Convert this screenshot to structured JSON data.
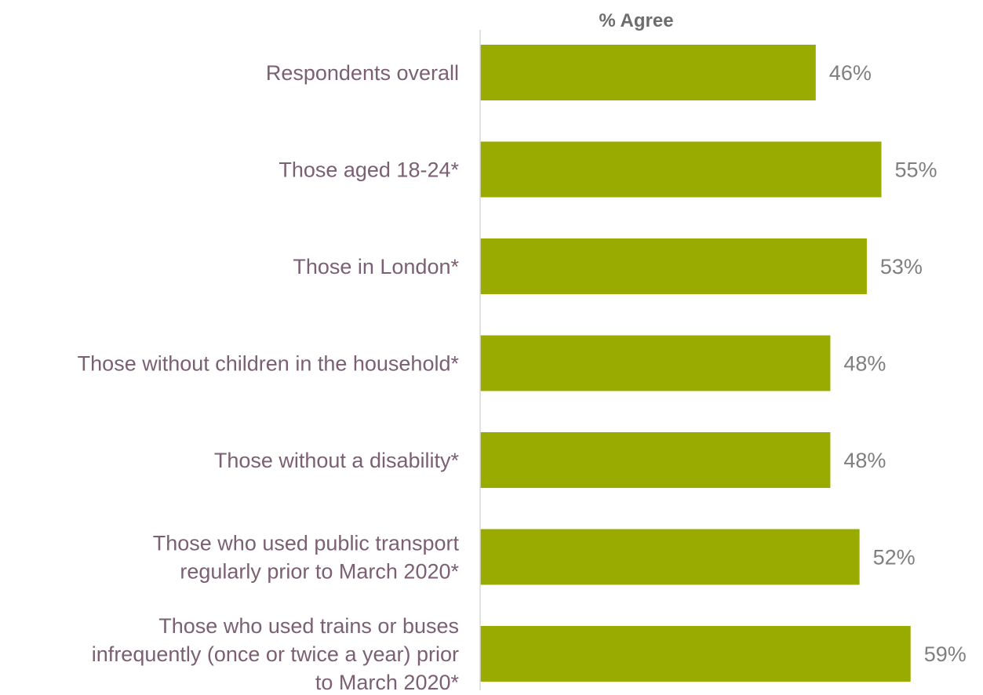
{
  "chart_data": {
    "type": "bar",
    "orientation": "horizontal",
    "title": "% Agree",
    "categories": [
      [
        "Respondents overall"
      ],
      [
        "Those aged 18-24*"
      ],
      [
        "Those in London*"
      ],
      [
        "Those without children in the household*"
      ],
      [
        "Those without a disability*"
      ],
      [
        "Those who used public transport",
        "regularly prior to March 2020*"
      ],
      [
        "Those who used trains or buses",
        "infrequently (once or twice a year) prior",
        "to March 2020*"
      ]
    ],
    "values": [
      46,
      55,
      53,
      48,
      48,
      52,
      59
    ],
    "value_labels": [
      "46%",
      "55%",
      "53%",
      "48%",
      "48%",
      "52%",
      "59%"
    ],
    "value_unit": "%",
    "xlim": [
      0,
      100
    ],
    "grid": false,
    "bar_color": "#9aab00",
    "category_label_color": "#7b5f72",
    "value_label_color": "#7f7f7f",
    "title_color": "#6d6d6d",
    "axis_color": "#d9d9d9"
  }
}
